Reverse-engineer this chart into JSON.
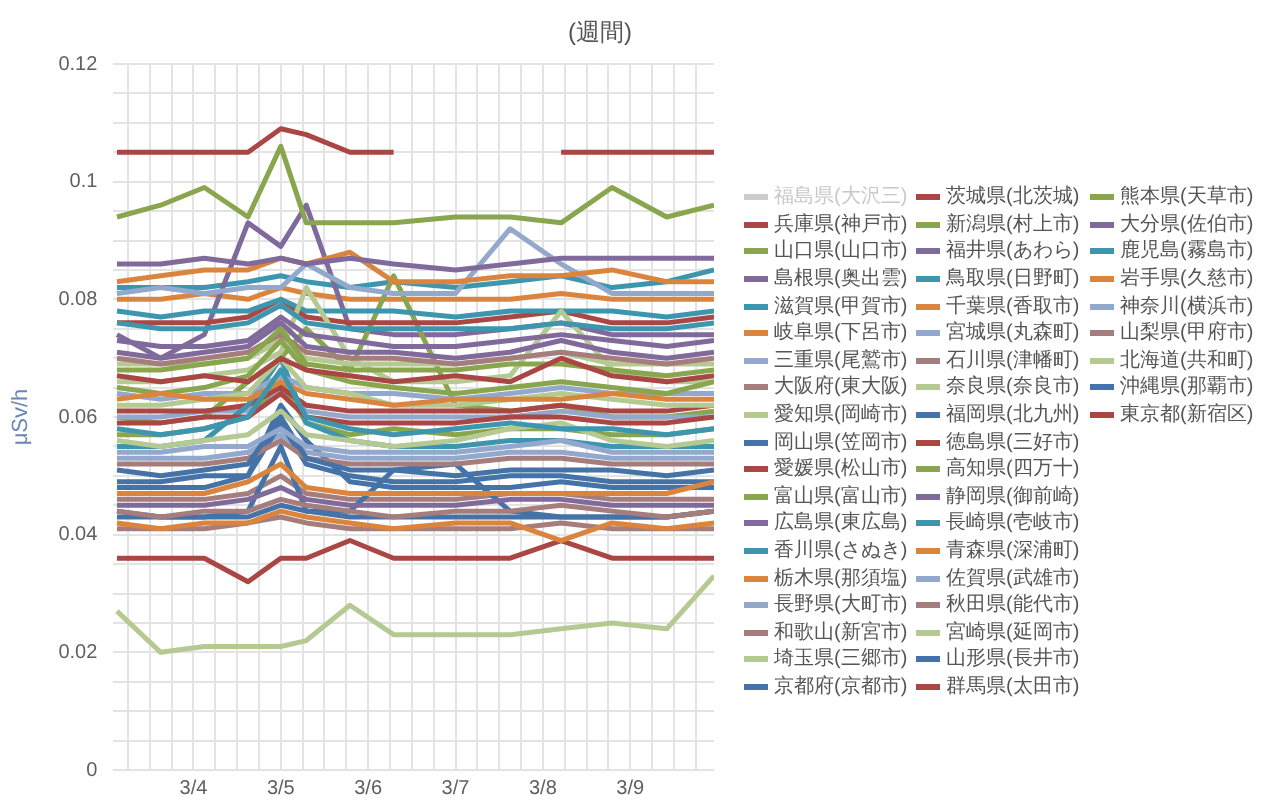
{
  "chart_data": {
    "type": "line",
    "title": "(週間)",
    "ylabel": "μSv/h",
    "x": [
      "--03-03T03:00",
      "--03-03T15:00",
      "--03-04T03:00",
      "--03-04T15:00",
      "--03-05T00:00",
      "--03-05T07:00",
      "--03-05T19:00",
      "--03-06T07:00",
      "--03-07T00:00",
      "--03-07T15:00",
      "--03-08T05:00",
      "--03-08T19:00",
      "--03-09T10:00",
      "--03-09T23:00"
    ],
    "xlim": [
      "--03-03T02:00",
      "--03-09T23:00"
    ],
    "xticks": [
      {
        "value": "--03-03T06:00",
        "label": null
      },
      {
        "value": "--03-03T12:00",
        "label": null
      },
      {
        "value": "--03-03T18:00",
        "label": null
      },
      {
        "value": "--03-04",
        "label": "3/4"
      },
      {
        "value": "--03-04T06:00",
        "label": null
      },
      {
        "value": "--03-04T12:00",
        "label": null
      },
      {
        "value": "--03-04T18:00",
        "label": null
      },
      {
        "value": "--03-05",
        "label": "3/5"
      },
      {
        "value": "--03-05T06:00",
        "label": null
      },
      {
        "value": "--03-05T12:00",
        "label": null
      },
      {
        "value": "--03-05T18:00",
        "label": null
      },
      {
        "value": "--03-06",
        "label": "3/6"
      },
      {
        "value": "--03-06T06:00",
        "label": null
      },
      {
        "value": "--03-06T12:00",
        "label": null
      },
      {
        "value": "--03-06T18:00",
        "label": null
      },
      {
        "value": "--03-07",
        "label": "3/7"
      },
      {
        "value": "--03-07T06:00",
        "label": null
      },
      {
        "value": "--03-07T12:00",
        "label": null
      },
      {
        "value": "--03-07T18:00",
        "label": null
      },
      {
        "value": "--03-08",
        "label": "3/8"
      },
      {
        "value": "--03-08T06:00",
        "label": null
      },
      {
        "value": "--03-08T12:00",
        "label": null
      },
      {
        "value": "--03-08T18:00",
        "label": null
      },
      {
        "value": "--03-09",
        "label": "3/9"
      },
      {
        "value": "--03-09T06:00",
        "label": null
      },
      {
        "value": "--03-09T12:00",
        "label": null
      },
      {
        "value": "--03-09T18:00",
        "label": null
      }
    ],
    "ylim": [
      0,
      0.12
    ],
    "yticks": [
      0,
      {
        "value": 0.005,
        "label": null
      },
      {
        "value": 0.01,
        "label": null
      },
      {
        "value": 0.015,
        "label": null
      },
      0.02,
      {
        "value": 0.025,
        "label": null
      },
      {
        "value": 0.03,
        "label": null
      },
      {
        "value": 0.035,
        "label": null
      },
      0.04,
      {
        "value": 0.045,
        "label": null
      },
      {
        "value": 0.05,
        "label": null
      },
      {
        "value": 0.055,
        "label": null
      },
      0.06,
      {
        "value": 0.065,
        "label": null
      },
      {
        "value": 0.07,
        "label": null
      },
      {
        "value": 0.075,
        "label": null
      },
      0.08,
      {
        "value": 0.085,
        "label": null
      },
      {
        "value": 0.09,
        "label": null
      },
      {
        "value": 0.095,
        "label": null
      },
      0.1,
      {
        "value": 0.105,
        "label": null
      },
      {
        "value": 0.11,
        "label": null
      },
      {
        "value": 0.115,
        "label": null
      },
      0.12
    ],
    "grid": true,
    "legend": "right",
    "marker": "none",
    "line_style": "solid",
    "series": [
      {
        "name": "福島県(大沢三)",
        "color": "#cccccc",
        "values": [
          null,
          null,
          null,
          null,
          null,
          null,
          null,
          null,
          null,
          null,
          null,
          null,
          null,
          null
        ]
      },
      {
        "name": "兵庫県(神戸市)",
        "color": "#aa4643",
        "values": [
          0.067,
          0.066,
          0.067,
          0.066,
          0.07,
          0.068,
          0.067,
          0.066,
          0.067,
          0.066,
          0.07,
          0.067,
          0.066,
          0.067
        ]
      },
      {
        "name": "山口県(山口市)",
        "color": "#89a54e",
        "values": [
          0.068,
          0.068,
          0.069,
          0.07,
          0.075,
          0.069,
          0.068,
          0.068,
          0.068,
          0.069,
          0.069,
          0.068,
          0.067,
          0.068
        ]
      },
      {
        "name": "島根県(奥出雲)",
        "color": "#80699b",
        "values": [
          0.086,
          0.086,
          0.087,
          0.086,
          0.087,
          0.086,
          0.087,
          0.086,
          0.085,
          0.086,
          0.087,
          0.087,
          0.087,
          0.087
        ]
      },
      {
        "name": "滋賀県(甲賀市)",
        "color": "#3d96ae",
        "values": [
          0.058,
          0.057,
          0.058,
          0.06,
          0.068,
          0.06,
          0.058,
          0.057,
          0.058,
          0.059,
          0.058,
          0.058,
          0.057,
          0.058
        ]
      },
      {
        "name": "岐阜県(下呂市)",
        "color": "#db843d",
        "values": [
          0.063,
          0.064,
          0.063,
          0.063,
          0.066,
          0.064,
          0.063,
          0.062,
          0.063,
          0.063,
          0.063,
          0.064,
          0.063,
          0.063
        ]
      },
      {
        "name": "三重県(尾鷲市)",
        "color": "#92a8cd",
        "values": [
          0.054,
          0.054,
          0.055,
          0.055,
          0.058,
          0.055,
          0.054,
          0.054,
          0.054,
          0.055,
          0.056,
          0.054,
          0.054,
          0.054
        ]
      },
      {
        "name": "大阪府(東大阪)",
        "color": "#a47d7c",
        "values": [
          0.07,
          0.069,
          0.07,
          0.071,
          0.074,
          0.071,
          0.07,
          0.07,
          0.069,
          0.07,
          0.071,
          0.07,
          0.069,
          0.07
        ]
      },
      {
        "name": "愛知県(岡崎市)",
        "color": "#b5ca92",
        "values": [
          0.062,
          0.062,
          0.063,
          0.064,
          0.07,
          0.065,
          0.064,
          0.062,
          0.062,
          0.063,
          0.064,
          0.063,
          0.062,
          0.062
        ]
      },
      {
        "name": "岡山県(笠岡市)",
        "color": "#4572a7",
        "values": [
          0.051,
          0.05,
          0.051,
          0.052,
          0.06,
          0.053,
          0.051,
          0.051,
          0.05,
          0.051,
          0.051,
          0.051,
          0.05,
          0.051
        ]
      },
      {
        "name": "愛媛県(松山市)",
        "color": "#aa4643",
        "values": [
          0.059,
          0.059,
          0.06,
          0.06,
          0.064,
          0.06,
          0.059,
          0.059,
          0.059,
          0.06,
          0.06,
          0.059,
          0.059,
          0.06
        ]
      },
      {
        "name": "富山県(富山市)",
        "color": "#89a54e",
        "values": [
          0.065,
          0.064,
          0.065,
          0.067,
          0.073,
          0.068,
          0.066,
          0.065,
          0.064,
          0.065,
          0.066,
          0.065,
          0.064,
          0.066
        ]
      },
      {
        "name": "広島県(東広島)",
        "color": "#80699b",
        "values": [
          0.073,
          0.072,
          0.072,
          0.073,
          0.077,
          0.074,
          0.073,
          0.072,
          0.072,
          0.073,
          0.074,
          0.073,
          0.072,
          0.073
        ]
      },
      {
        "name": "香川県(さぬき)",
        "color": "#3d96ae",
        "values": [
          0.076,
          0.075,
          0.075,
          0.076,
          0.079,
          0.076,
          0.075,
          0.075,
          0.075,
          0.075,
          0.076,
          0.075,
          0.075,
          0.076
        ]
      },
      {
        "name": "栃木県(那須塩)",
        "color": "#db843d",
        "values": [
          0.047,
          0.047,
          0.047,
          0.049,
          0.052,
          0.048,
          0.047,
          0.047,
          0.047,
          0.047,
          0.047,
          0.047,
          0.047,
          0.049
        ]
      },
      {
        "name": "長野県(大町市)",
        "color": "#92a8cd",
        "values": [
          0.064,
          0.063,
          0.064,
          0.064,
          0.067,
          0.065,
          0.064,
          0.064,
          0.063,
          0.064,
          0.065,
          0.064,
          0.064,
          0.064
        ]
      },
      {
        "name": "和歌山(新宮市)",
        "color": "#a47d7c",
        "values": [
          0.044,
          0.043,
          0.044,
          0.044,
          0.046,
          0.045,
          0.044,
          0.043,
          0.044,
          0.044,
          0.045,
          0.044,
          0.043,
          0.044
        ]
      },
      {
        "name": "埼玉県(三郷市)",
        "color": "#b5ca92",
        "values": [
          0.056,
          0.055,
          0.056,
          0.057,
          0.061,
          0.057,
          0.056,
          0.055,
          0.056,
          0.058,
          0.059,
          0.056,
          0.055,
          0.056
        ]
      },
      {
        "name": "京都府(京都市)",
        "color": "#4572a7",
        "values": [
          0.043,
          0.043,
          0.043,
          0.043,
          0.045,
          0.044,
          0.043,
          0.043,
          0.043,
          0.043,
          0.043,
          0.043,
          0.043,
          0.044
        ]
      },
      {
        "name": "茨城県(北茨城)",
        "color": "#aa4643",
        "values": [
          0.105,
          0.105,
          0.105,
          0.105,
          0.109,
          0.108,
          0.105,
          0.105,
          null,
          null,
          0.105,
          0.105,
          0.105,
          0.105
        ]
      },
      {
        "name": "新潟県(村上市)",
        "color": "#89a54e",
        "values": [
          0.094,
          0.096,
          0.099,
          0.094,
          0.106,
          0.093,
          0.093,
          0.093,
          0.094,
          0.094,
          0.093,
          0.099,
          0.094,
          0.096
        ]
      },
      {
        "name": "福井県(あわら)",
        "color": "#80699b",
        "values": [
          0.071,
          0.07,
          0.071,
          0.072,
          0.076,
          0.072,
          0.071,
          0.071,
          0.07,
          0.071,
          0.073,
          0.071,
          0.07,
          0.071
        ]
      },
      {
        "name": "鳥取県(日野町)",
        "color": "#3d96ae",
        "values": [
          0.055,
          0.055,
          0.056,
          0.062,
          0.07,
          0.059,
          0.056,
          0.055,
          0.055,
          0.056,
          0.056,
          0.055,
          0.055,
          0.055
        ]
      },
      {
        "name": "千葉県(香取市)",
        "color": "#db843d",
        "values": [
          0.083,
          0.084,
          0.085,
          0.085,
          0.087,
          0.086,
          0.088,
          0.083,
          0.083,
          0.084,
          0.084,
          0.085,
          0.083,
          0.083
        ]
      },
      {
        "name": "宮城県(丸森町)",
        "color": "#92a8cd",
        "values": [
          0.081,
          0.082,
          0.081,
          0.082,
          0.082,
          0.086,
          0.082,
          0.081,
          0.081,
          0.092,
          0.086,
          0.081,
          0.081,
          0.081
        ]
      },
      {
        "name": "石川県(津幡町)",
        "color": "#a47d7c",
        "values": [
          0.052,
          0.052,
          0.052,
          0.053,
          0.056,
          0.053,
          0.052,
          0.052,
          0.052,
          0.053,
          0.053,
          0.052,
          0.052,
          0.052
        ]
      },
      {
        "name": "奈良県(奈良市)",
        "color": "#b5ca92",
        "values": [
          0.066,
          0.066,
          0.067,
          0.068,
          0.071,
          0.082,
          0.07,
          0.066,
          0.066,
          0.067,
          0.078,
          0.068,
          0.066,
          0.066
        ]
      },
      {
        "name": "福岡県(北九州)",
        "color": "#4572a7",
        "values": [
          0.049,
          0.049,
          0.05,
          0.05,
          0.059,
          0.052,
          0.05,
          0.049,
          0.049,
          0.05,
          0.05,
          0.049,
          0.049,
          0.049
        ]
      },
      {
        "name": "徳島県(三好市)",
        "color": "#aa4643",
        "values": [
          0.061,
          0.061,
          0.061,
          0.062,
          0.065,
          0.062,
          0.061,
          0.061,
          0.061,
          0.061,
          0.062,
          0.061,
          0.061,
          0.062
        ]
      },
      {
        "name": "高知県(四万十)",
        "color": "#89a54e",
        "values": [
          0.057,
          0.057,
          0.058,
          0.06,
          0.066,
          0.059,
          0.057,
          0.058,
          0.057,
          0.058,
          0.058,
          0.057,
          0.057,
          0.058
        ]
      },
      {
        "name": "静岡県(御前崎)",
        "color": "#80699b",
        "values": [
          0.045,
          0.045,
          0.045,
          0.046,
          0.048,
          0.046,
          0.045,
          0.045,
          0.045,
          0.046,
          0.046,
          0.045,
          0.045,
          0.045
        ]
      },
      {
        "name": "長崎県(壱岐市)",
        "color": "#3d96ae",
        "values": [
          0.078,
          0.077,
          0.078,
          0.078,
          0.08,
          0.078,
          0.078,
          0.078,
          0.077,
          0.078,
          0.078,
          0.078,
          0.077,
          0.078
        ]
      },
      {
        "name": "青森県(深浦町)",
        "color": "#db843d",
        "values": [
          0.042,
          0.041,
          0.042,
          0.042,
          0.044,
          0.043,
          0.042,
          0.041,
          0.042,
          0.042,
          0.039,
          0.042,
          0.041,
          0.042
        ]
      },
      {
        "name": "佐賀県(武雄市)",
        "color": "#92a8cd",
        "values": [
          0.06,
          0.06,
          0.061,
          0.061,
          0.064,
          0.061,
          0.06,
          0.06,
          0.06,
          0.06,
          0.061,
          0.06,
          0.06,
          0.06
        ]
      },
      {
        "name": "秋田県(能代市)",
        "color": "#a47d7c",
        "values": [
          0.041,
          0.041,
          0.041,
          0.042,
          0.043,
          0.042,
          0.041,
          0.041,
          0.041,
          0.041,
          0.042,
          0.041,
          0.041,
          0.041
        ]
      },
      {
        "name": "宮崎県(延岡市)",
        "color": "#b5ca92",
        "values": [
          0.069,
          0.069,
          0.069,
          0.07,
          0.073,
          0.07,
          0.069,
          0.069,
          0.069,
          0.07,
          0.071,
          0.069,
          0.069,
          0.069
        ]
      },
      {
        "name": "山形県(長井市)",
        "color": "#4572a7",
        "values": [
          0.044,
          0.043,
          0.043,
          0.044,
          0.055,
          0.044,
          0.044,
          0.051,
          0.052,
          0.044,
          0.043,
          0.043,
          0.043,
          0.044
        ]
      },
      {
        "name": "群馬県(太田市)",
        "color": "#aa4643",
        "values": [
          0.076,
          0.076,
          0.076,
          0.077,
          0.08,
          0.077,
          0.076,
          0.076,
          0.076,
          0.077,
          0.078,
          0.076,
          0.076,
          0.077
        ]
      },
      {
        "name": "熊本県(天草市)",
        "color": "#89a54e",
        "values": [
          0.06,
          0.059,
          0.06,
          0.066,
          0.07,
          0.075,
          0.068,
          0.084,
          0.062,
          0.061,
          0.062,
          0.06,
          0.06,
          0.061
        ]
      },
      {
        "name": "大分県(佐伯市)",
        "color": "#80699b",
        "values": [
          0.074,
          0.07,
          0.074,
          0.093,
          0.089,
          0.096,
          0.075,
          0.074,
          0.074,
          0.075,
          0.076,
          0.074,
          0.074,
          0.074
        ]
      },
      {
        "name": "鹿児島(霧島市)",
        "color": "#3d96ae",
        "values": [
          0.082,
          0.082,
          0.082,
          0.083,
          0.084,
          0.083,
          0.082,
          0.083,
          0.082,
          0.083,
          0.084,
          0.082,
          0.083,
          0.085
        ]
      },
      {
        "name": "岩手県(久慈市)",
        "color": "#db843d",
        "values": [
          0.08,
          0.08,
          0.081,
          0.08,
          0.082,
          0.081,
          0.08,
          0.08,
          0.08,
          0.08,
          0.081,
          0.08,
          0.08,
          0.08
        ]
      },
      {
        "name": "神奈川(横浜市)",
        "color": "#92a8cd",
        "values": [
          0.053,
          0.053,
          0.053,
          0.054,
          0.057,
          0.054,
          0.053,
          0.053,
          0.053,
          0.054,
          0.054,
          0.053,
          0.053,
          0.053
        ]
      },
      {
        "name": "山梨県(甲府市)",
        "color": "#a47d7c",
        "values": [
          0.046,
          0.046,
          0.046,
          0.047,
          0.05,
          0.047,
          0.046,
          0.046,
          0.046,
          0.047,
          0.047,
          0.046,
          0.046,
          0.046
        ]
      },
      {
        "name": "北海道(共和町)",
        "color": "#b5ca92",
        "values": [
          0.027,
          0.02,
          0.021,
          0.021,
          0.021,
          0.022,
          0.028,
          0.023,
          0.023,
          0.023,
          0.024,
          0.025,
          0.024,
          0.033
        ]
      },
      {
        "name": "沖縄県(那覇市)",
        "color": "#4572a7",
        "values": [
          0.048,
          0.048,
          0.048,
          0.05,
          0.062,
          0.056,
          0.049,
          0.048,
          0.048,
          0.048,
          0.049,
          0.048,
          0.048,
          0.048
        ]
      },
      {
        "name": "東京都(新宿区)",
        "color": "#aa4643",
        "values": [
          0.036,
          0.036,
          0.036,
          0.032,
          0.036,
          0.036,
          0.039,
          0.036,
          0.036,
          0.036,
          0.039,
          0.036,
          0.036,
          0.036
        ]
      }
    ]
  }
}
